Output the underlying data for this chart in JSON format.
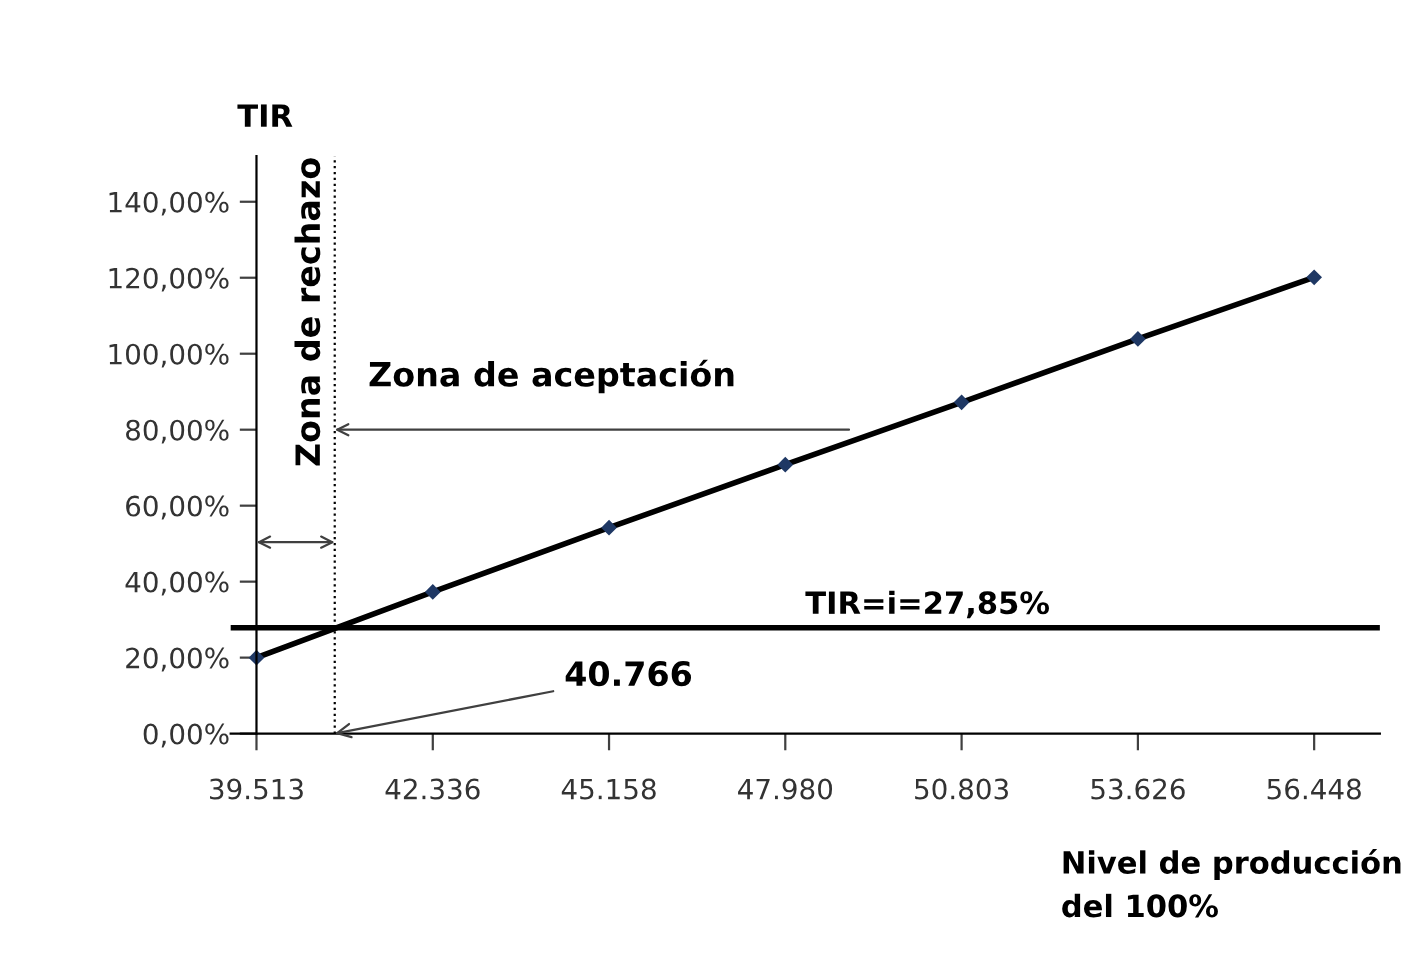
{
  "chart_data": {
    "type": "line",
    "ylabel": "TIR",
    "xlabel": "Nivel de producción\ndel 100%",
    "x": [
      39513,
      42336,
      45158,
      47980,
      50803,
      53626,
      56448
    ],
    "series": [
      {
        "color": "#1f3864",
        "values": [
          20,
          37.3,
          54.2,
          70.8,
          87.2,
          103.9,
          120.1
        ]
      }
    ],
    "marker": "diamond",
    "line_style": "solid",
    "grid": false,
    "xlim": [
      39100,
      57500
    ],
    "xticks": [
      {
        "value": 39513,
        "label": "39.513"
      },
      {
        "value": 42336,
        "label": "42.336"
      },
      {
        "value": 45158,
        "label": "45.158"
      },
      {
        "value": 47980,
        "label": "47.980"
      },
      {
        "value": 50803,
        "label": "50.803"
      },
      {
        "value": 53626,
        "label": "53.626"
      },
      {
        "value": 56448,
        "label": "56.448"
      }
    ],
    "ylim": [
      0,
      152
    ],
    "yticks": [
      {
        "value": 0,
        "label": "0,00%"
      },
      {
        "value": 20,
        "label": "20,00%"
      },
      {
        "value": 40,
        "label": "40,00%"
      },
      {
        "value": 60,
        "label": "60,00%"
      },
      {
        "value": 80,
        "label": "80,00%"
      },
      {
        "value": 100,
        "label": "100,00%"
      },
      {
        "value": 120,
        "label": "120,00%"
      },
      {
        "value": 140,
        "label": "140,00%"
      }
    ],
    "ref_lines": [
      {
        "axis": "y",
        "value": 27.85,
        "label": "TIR=i=27,85%",
        "color": "#000000",
        "line_style": "solid"
      },
      {
        "axis": "x",
        "value": 40766,
        "color": "#000000",
        "line_style": "dotted"
      }
    ],
    "annotations": [
      "Zona de rechazo",
      "Zona de aceptación",
      {
        "text": "40.766",
        "x": 40766,
        "y": 0
      }
    ]
  }
}
